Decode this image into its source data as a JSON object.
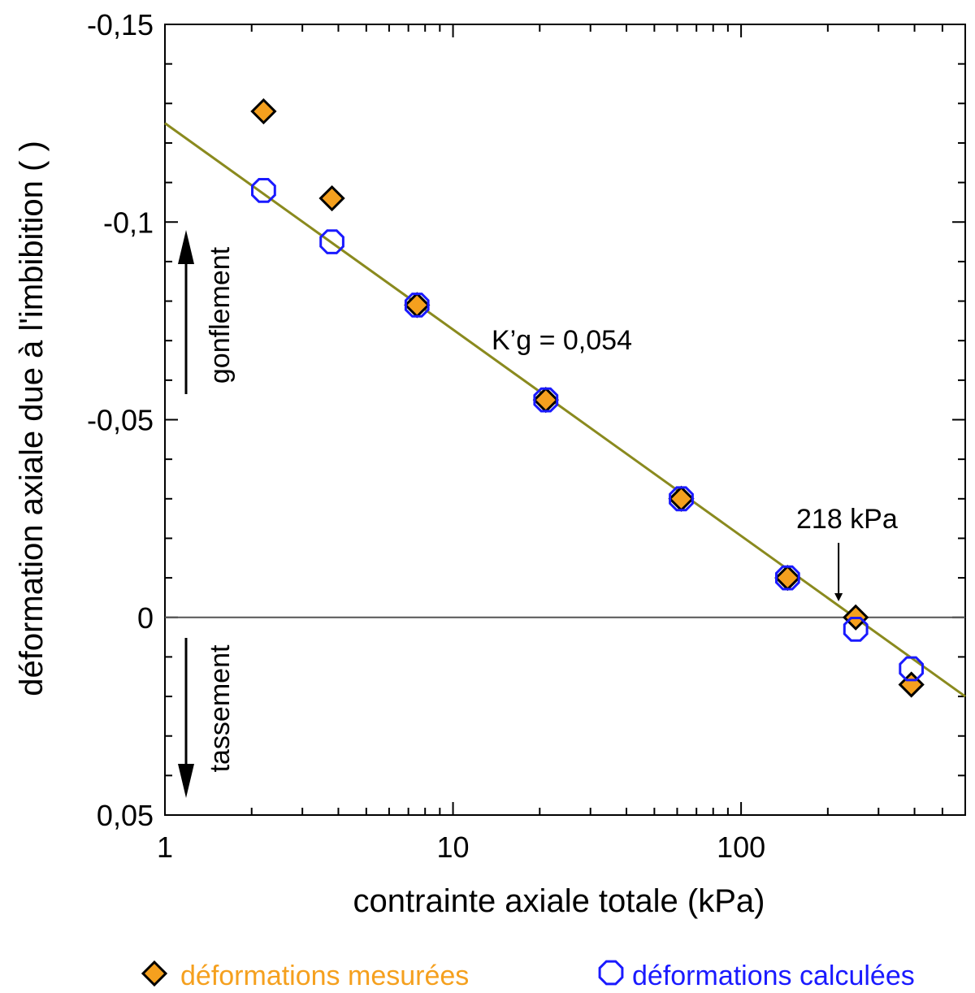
{
  "chart_data": {
    "type": "scatter",
    "xscale": "log",
    "xlim": [
      1,
      600
    ],
    "ylim": [
      -0.15,
      0.05
    ],
    "y_inverted": true,
    "xlabel": "contrainte axiale totale (kPa)",
    "ylabel": "déformation axiale due à l'imbibition ( )",
    "x_ticks": [
      1,
      10,
      100
    ],
    "x_tick_labels": [
      "1",
      "10",
      "100"
    ],
    "y_ticks": [
      -0.15,
      -0.1,
      -0.05,
      0,
      0.05
    ],
    "y_tick_labels": [
      "-0,15",
      "-0,1",
      "-0,05",
      "0",
      "0,05"
    ],
    "series": [
      {
        "name": "déformations mesurées",
        "marker": "diamond",
        "color": "#f5a01e",
        "x": [
          2.2,
          3.8,
          7.5,
          21,
          62,
          145,
          250,
          390
        ],
        "y": [
          -0.128,
          -0.106,
          -0.079,
          -0.055,
          -0.03,
          -0.01,
          0.0,
          0.017
        ]
      },
      {
        "name": "déformations calculées",
        "marker": "circle-open",
        "color": "#1a1aff",
        "x": [
          2.2,
          3.8,
          7.5,
          21,
          62,
          145,
          250,
          390
        ],
        "y": [
          -0.108,
          -0.095,
          -0.079,
          -0.055,
          -0.03,
          -0.01,
          0.003,
          0.013
        ]
      }
    ],
    "fit_line": {
      "color": "#8a8a1e",
      "x": [
        1,
        600
      ],
      "y": [
        -0.125,
        0.02
      ]
    },
    "zero_line_y": 0,
    "annotations": {
      "slope": "K’g = 0,054",
      "threshold": "218 kPa",
      "threshold_x": 218,
      "swell": "gonflement",
      "settle": "tassement"
    },
    "legend_position": "bottom"
  }
}
